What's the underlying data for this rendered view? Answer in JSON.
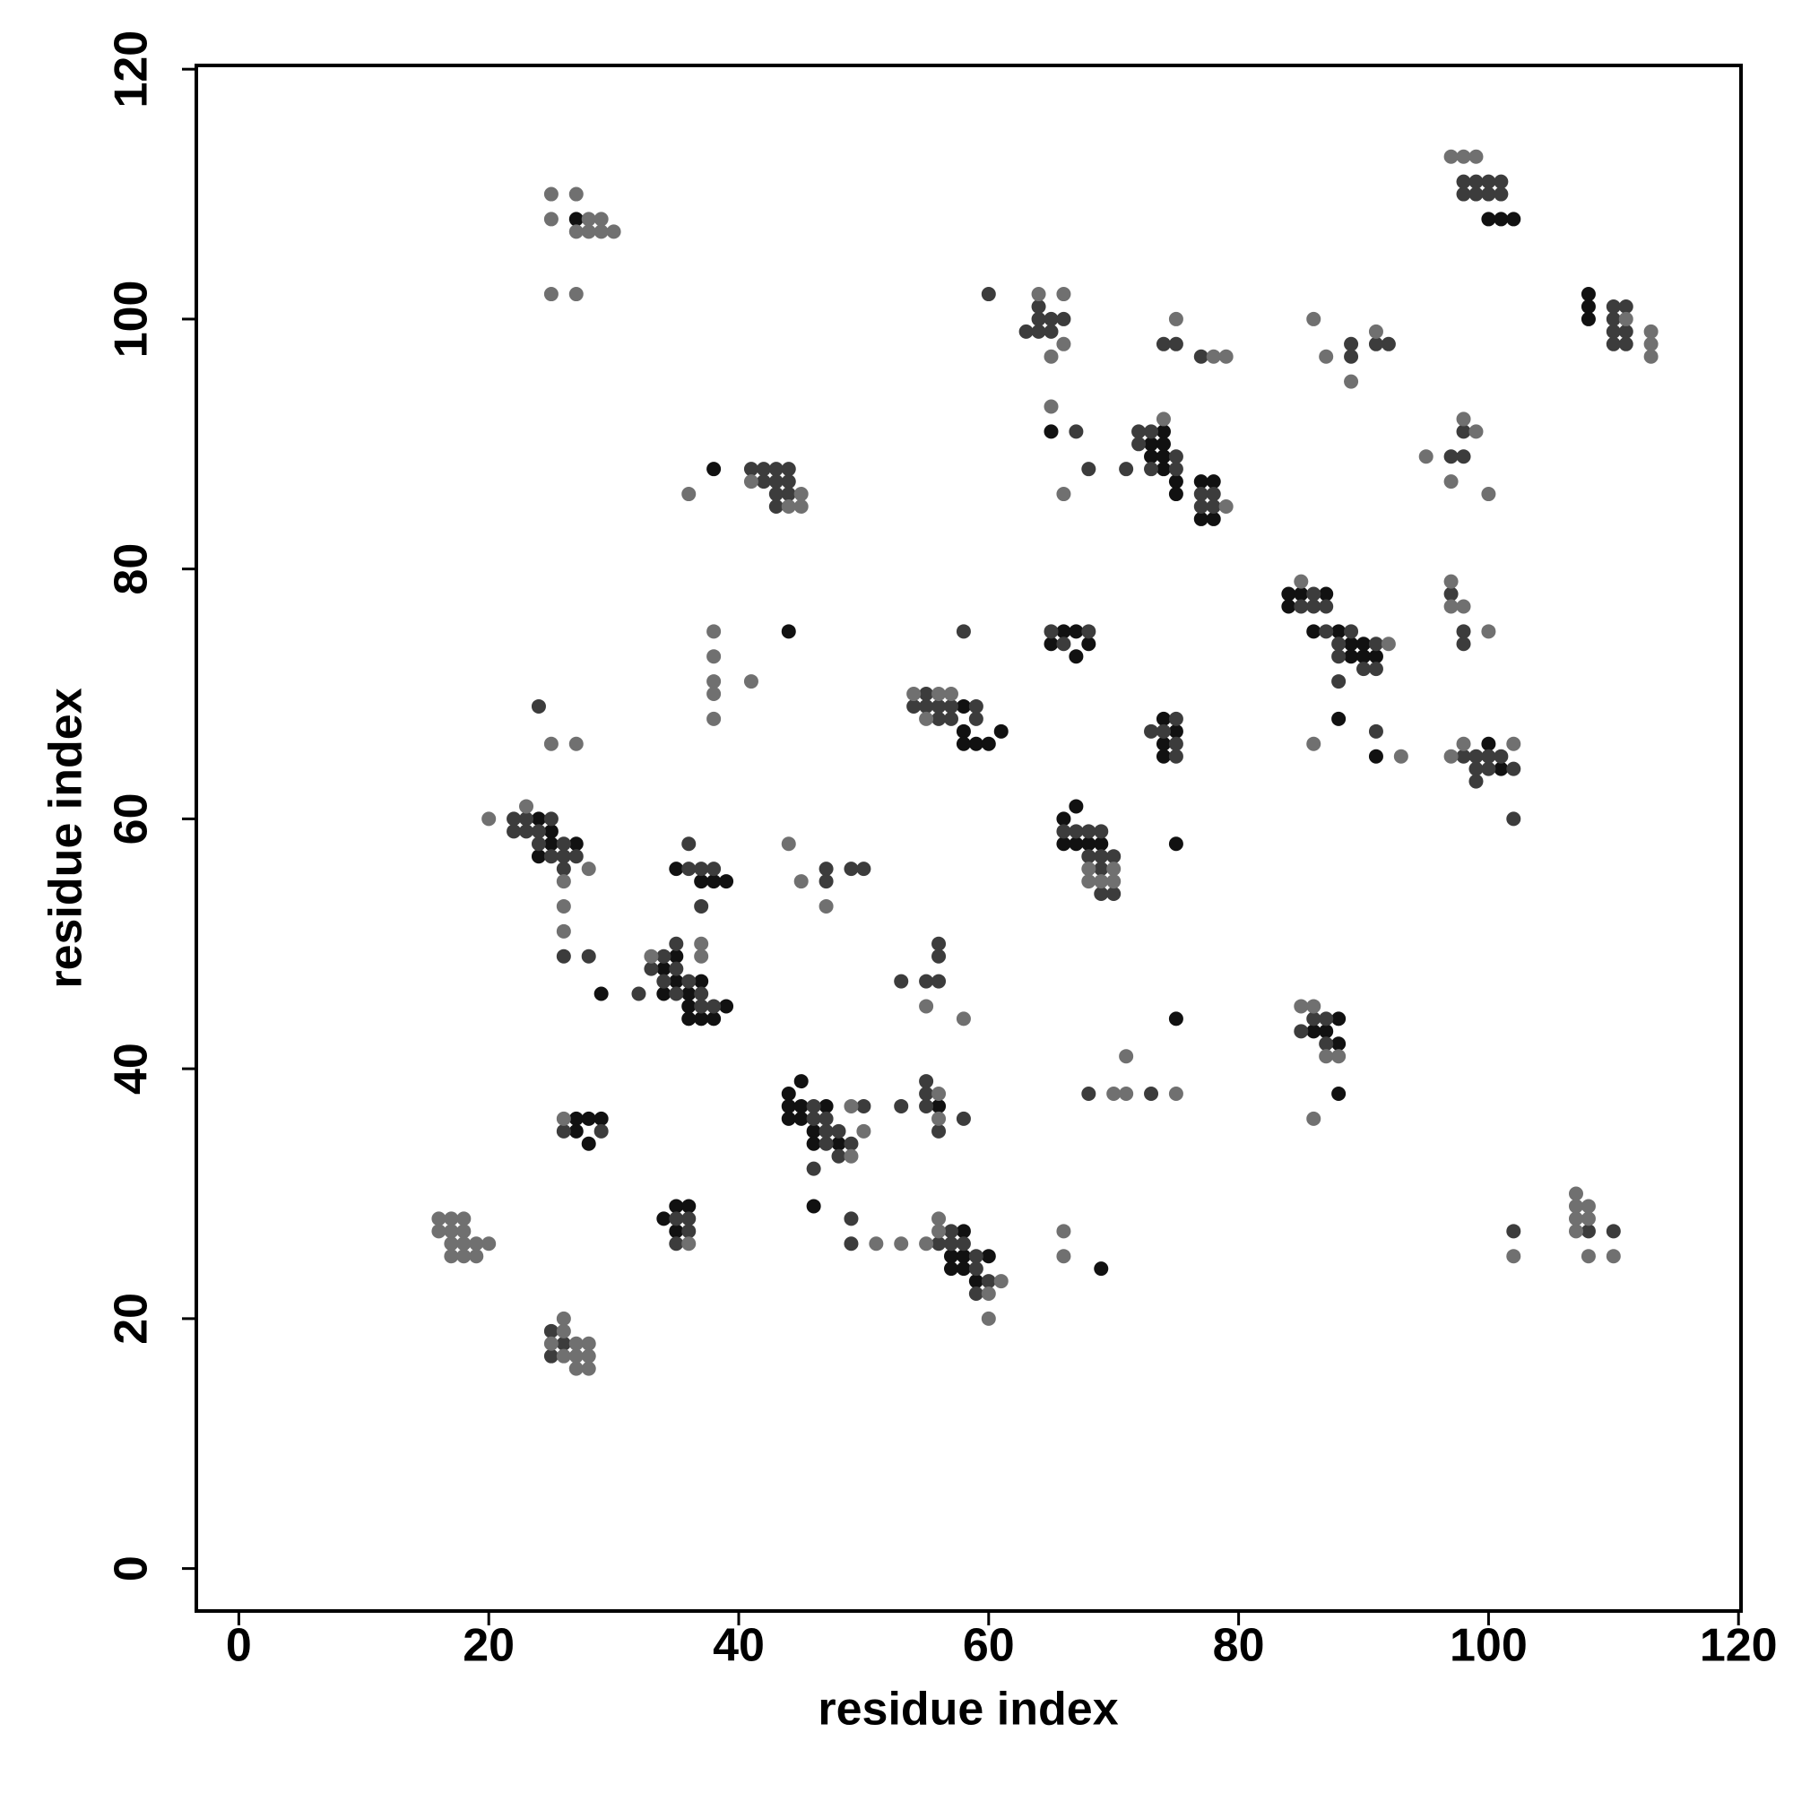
{
  "chart_data": {
    "type": "scatter",
    "x_label": "residue index",
    "y_label": "residue index",
    "xlim": [
      -3.4,
      120.2
    ],
    "ylim": [
      -3.4,
      120.3
    ],
    "xticks": [
      0,
      20,
      40,
      60,
      80,
      100,
      120
    ],
    "yticks": [
      0,
      20,
      40,
      60,
      80,
      100,
      120
    ],
    "grid": false,
    "series": [
      {
        "color": "#111111",
        "x": [
          27,
          100,
          101,
          102,
          108,
          108,
          108,
          65,
          74,
          73,
          74,
          73,
          74,
          74,
          75,
          75,
          77,
          78,
          77,
          78,
          84,
          85,
          87,
          84,
          86,
          88,
          89,
          90,
          89,
          90,
          91,
          88,
          91,
          100,
          101,
          65,
          66,
          67,
          68,
          67,
          74,
          75,
          74,
          74,
          75,
          58,
          58,
          59,
          60,
          61,
          58,
          67,
          66,
          66,
          67,
          68,
          69,
          38,
          44,
          24,
          25,
          25,
          24,
          27,
          29,
          35,
          37,
          38,
          39,
          35,
          34,
          35,
          37,
          34,
          36,
          36,
          37,
          38,
          39,
          36,
          27,
          28,
          29,
          27,
          28,
          45,
          44,
          44,
          45,
          44,
          45,
          47,
          46,
          46,
          48,
          46,
          56,
          58,
          57,
          58,
          57,
          58,
          60,
          59,
          35,
          36,
          35,
          34,
          88,
          86,
          87,
          88,
          88,
          75,
          69
        ],
        "y": [
          108,
          108,
          108,
          108,
          102,
          101,
          100,
          91,
          91,
          90,
          90,
          89,
          89,
          88,
          87,
          86,
          87,
          87,
          84,
          84,
          78,
          78,
          78,
          77,
          75,
          75,
          74,
          74,
          73,
          73,
          73,
          68,
          65,
          66,
          64,
          74,
          75,
          75,
          74,
          73,
          68,
          67,
          66,
          65,
          58,
          69,
          67,
          66,
          66,
          67,
          66,
          61,
          60,
          58,
          58,
          58,
          58,
          88,
          75,
          60,
          59,
          58,
          57,
          58,
          46,
          56,
          55,
          55,
          55,
          49,
          48,
          47,
          47,
          46,
          46,
          45,
          44,
          44,
          45,
          44,
          36,
          36,
          36,
          35,
          34,
          39,
          38,
          37,
          37,
          36,
          36,
          37,
          35,
          34,
          34,
          29,
          37,
          27,
          25,
          25,
          24,
          24,
          25,
          23,
          29,
          29,
          27,
          28,
          44,
          43,
          43,
          42,
          38,
          44,
          24
        ]
      },
      {
        "color": "#3c3c3c",
        "x": [
          99,
          100,
          101,
          98,
          99,
          100,
          101,
          98,
          110,
          111,
          110,
          110,
          111,
          110,
          111,
          60,
          64,
          65,
          66,
          64,
          63,
          64,
          65,
          67,
          68,
          72,
          73,
          72,
          73,
          75,
          75,
          71,
          77,
          78,
          77,
          78,
          74,
          75,
          77,
          89,
          89,
          91,
          92,
          97,
          98,
          98,
          97,
          98,
          98,
          86,
          85,
          86,
          87,
          87,
          89,
          88,
          91,
          88,
          90,
          91,
          88,
          99,
          101,
          99,
          100,
          102,
          99,
          98,
          100,
          102,
          91,
          65,
          68,
          66,
          73,
          75,
          74,
          75,
          75,
          55,
          54,
          55,
          56,
          57,
          59,
          56,
          57,
          59,
          58,
          66,
          67,
          68,
          69,
          68,
          69,
          70,
          69,
          69,
          70,
          41,
          42,
          43,
          44,
          42,
          43,
          44,
          43,
          44,
          43,
          24,
          22,
          23,
          25,
          22,
          23,
          24,
          24,
          26,
          25,
          26,
          27,
          26,
          26,
          28,
          36,
          36,
          37,
          38,
          37,
          47,
          47,
          49,
          50,
          32,
          34,
          35,
          33,
          35,
          36,
          34,
          35,
          37,
          37,
          38,
          53,
          55,
          56,
          56,
          56,
          26,
          29,
          46,
          46,
          47,
          47,
          48,
          47,
          49,
          48,
          50,
          46,
          49,
          53,
          55,
          55,
          55,
          56,
          58,
          57,
          56,
          57,
          58,
          59,
          59,
          60,
          59,
          36,
          35,
          36,
          35,
          49,
          25,
          26,
          25,
          68,
          73,
          85,
          86,
          87,
          87,
          110,
          108,
          102
        ],
        "y": [
          111,
          111,
          111,
          110,
          110,
          110,
          110,
          111,
          101,
          101,
          100,
          99,
          99,
          98,
          98,
          102,
          101,
          100,
          100,
          100,
          99,
          99,
          99,
          91,
          88,
          91,
          91,
          90,
          88,
          89,
          88,
          88,
          86,
          86,
          85,
          85,
          98,
          98,
          97,
          98,
          97,
          98,
          98,
          89,
          89,
          91,
          78,
          75,
          74,
          78,
          77,
          77,
          77,
          75,
          75,
          74,
          74,
          73,
          72,
          72,
          71,
          65,
          65,
          64,
          64,
          64,
          63,
          65,
          65,
          60,
          67,
          75,
          75,
          74,
          67,
          68,
          67,
          66,
          65,
          70,
          69,
          69,
          69,
          69,
          69,
          68,
          68,
          68,
          75,
          59,
          59,
          59,
          59,
          57,
          57,
          57,
          56,
          54,
          54,
          88,
          88,
          88,
          88,
          87,
          87,
          87,
          86,
          86,
          85,
          69,
          60,
          60,
          60,
          59,
          59,
          59,
          58,
          58,
          57,
          57,
          57,
          56,
          49,
          49,
          58,
          56,
          56,
          56,
          53,
          56,
          55,
          56,
          56,
          46,
          49,
          50,
          48,
          48,
          47,
          47,
          46,
          46,
          45,
          45,
          47,
          47,
          47,
          50,
          49,
          35,
          35,
          37,
          36,
          36,
          35,
          35,
          34,
          34,
          33,
          37,
          32,
          28,
          37,
          39,
          38,
          37,
          35,
          36,
          27,
          26,
          26,
          26,
          25,
          24,
          23,
          22,
          28,
          28,
          27,
          26,
          26,
          19,
          18,
          17,
          38,
          38,
          43,
          44,
          44,
          42,
          27,
          27,
          27
        ]
      },
      {
        "color": "#707070",
        "x": [
          25,
          27,
          25,
          27,
          28,
          29,
          28,
          29,
          30,
          25,
          27,
          97,
          98,
          99,
          111,
          113,
          113,
          113,
          64,
          66,
          66,
          65,
          65,
          66,
          74,
          79,
          75,
          78,
          79,
          86,
          87,
          89,
          91,
          95,
          98,
          99,
          97,
          100,
          97,
          97,
          98,
          100,
          85,
          92,
          86,
          97,
          98,
          102,
          93,
          54,
          56,
          57,
          55,
          68,
          70,
          68,
          69,
          70,
          41,
          44,
          45,
          45,
          36,
          41,
          38,
          38,
          38,
          38,
          38,
          20,
          23,
          28,
          26,
          26,
          26,
          25,
          27,
          44,
          45,
          47,
          33,
          37,
          37,
          55,
          58,
          26,
          49,
          50,
          49,
          56,
          56,
          16,
          17,
          18,
          16,
          17,
          18,
          17,
          18,
          19,
          20,
          17,
          18,
          19,
          36,
          51,
          53,
          55,
          56,
          56,
          61,
          60,
          60,
          66,
          66,
          26,
          26,
          25,
          27,
          28,
          26,
          27,
          28,
          27,
          28,
          70,
          71,
          75,
          71,
          85,
          86,
          87,
          88,
          86,
          102,
          107,
          107,
          108,
          107,
          108,
          107,
          108,
          110
        ],
        "y": [
          110,
          110,
          108,
          107,
          107,
          107,
          108,
          108,
          107,
          102,
          102,
          113,
          113,
          113,
          100,
          99,
          98,
          97,
          102,
          102,
          98,
          97,
          93,
          86,
          92,
          85,
          100,
          97,
          97,
          100,
          97,
          95,
          99,
          89,
          92,
          91,
          87,
          86,
          79,
          77,
          77,
          75,
          79,
          74,
          66,
          65,
          66,
          66,
          65,
          70,
          70,
          70,
          68,
          56,
          56,
          55,
          55,
          55,
          87,
          85,
          85,
          86,
          86,
          71,
          75,
          73,
          71,
          70,
          68,
          60,
          61,
          56,
          55,
          53,
          51,
          66,
          66,
          58,
          55,
          53,
          49,
          50,
          49,
          45,
          44,
          36,
          37,
          35,
          33,
          38,
          36,
          28,
          28,
          28,
          27,
          27,
          27,
          26,
          26,
          26,
          26,
          25,
          25,
          25,
          26,
          26,
          26,
          26,
          28,
          27,
          23,
          22,
          20,
          27,
          25,
          20,
          19,
          18,
          18,
          18,
          17,
          17,
          17,
          16,
          16,
          38,
          38,
          38,
          41,
          45,
          45,
          41,
          41,
          36,
          25,
          30,
          29,
          29,
          28,
          28,
          27,
          25,
          25
        ]
      }
    ]
  }
}
